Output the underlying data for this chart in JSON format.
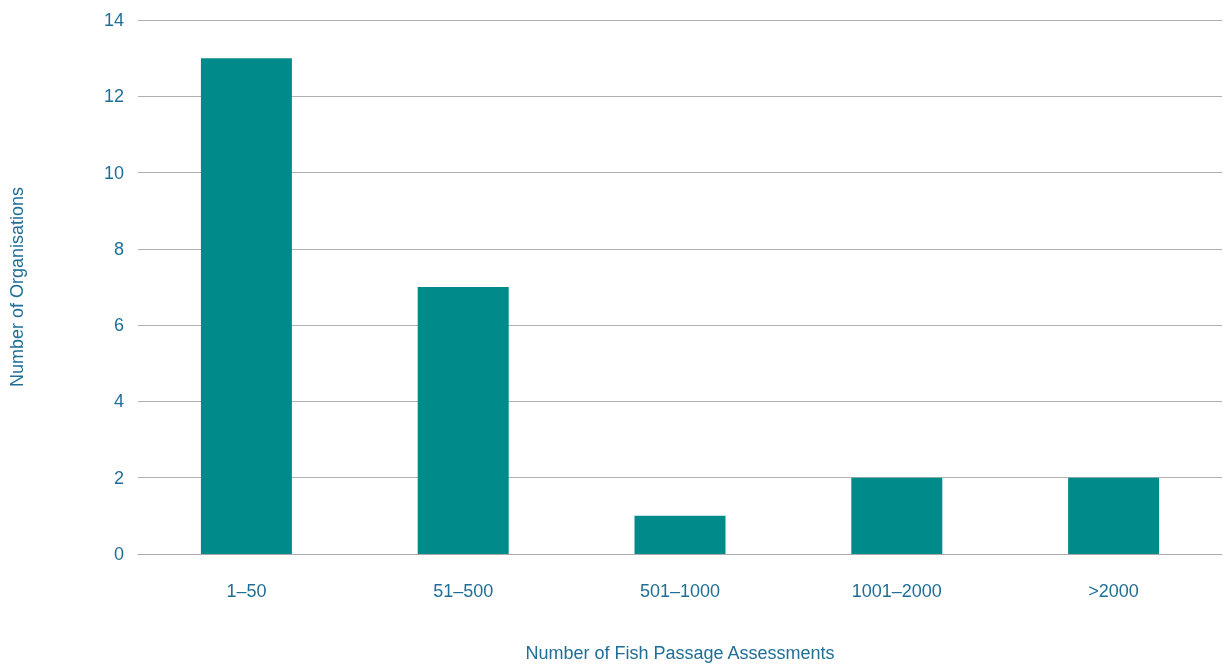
{
  "chart_data": {
    "type": "bar",
    "xlabel": "Number of Fish Passage Assessments",
    "ylabel": "Number of Organisations",
    "categories": [
      "1–50",
      "51–500",
      "501–1000",
      "1001–2000",
      ">2000"
    ],
    "values": [
      13,
      7,
      1,
      2,
      2
    ],
    "color": "#008b8b",
    "ylim": [
      0,
      14
    ],
    "yticks": [
      0,
      2,
      4,
      6,
      8,
      10,
      12,
      14
    ],
    "grid": "y"
  }
}
